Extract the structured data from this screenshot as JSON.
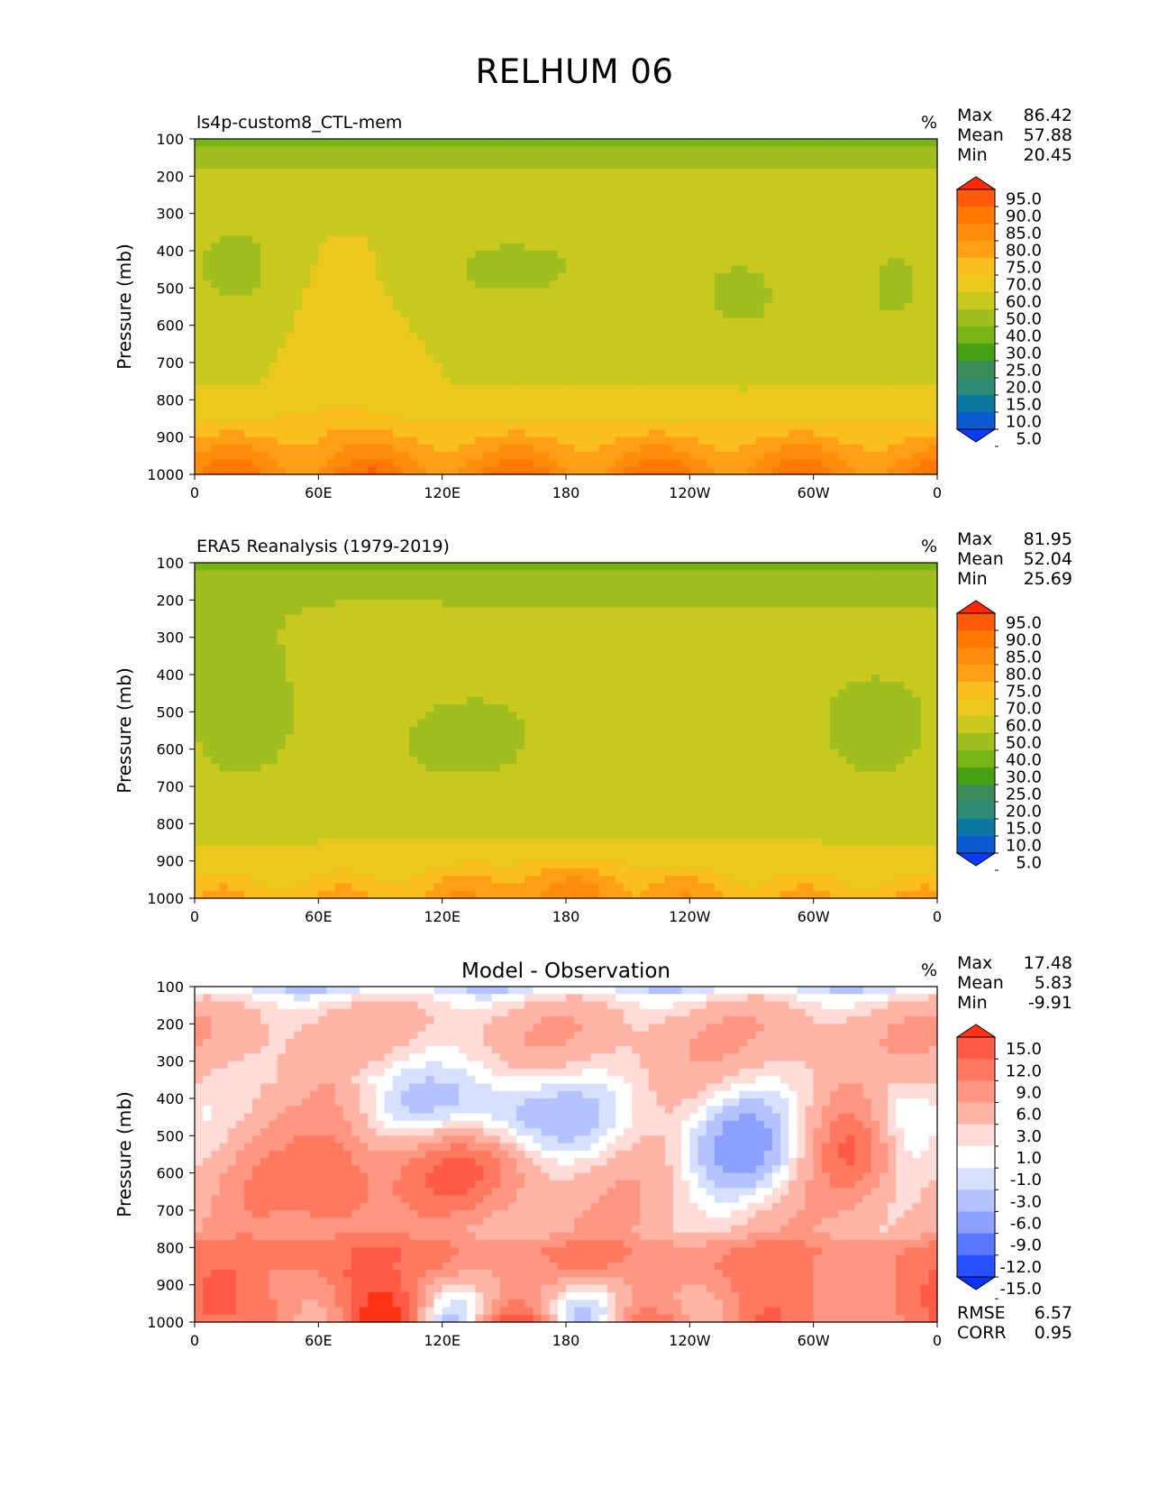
{
  "figure_title": "RELHUM 06",
  "chart_data": [
    {
      "type": "heatmap",
      "title": "ls4p-custom8_CTL-mem",
      "title_position": "left",
      "units": "%",
      "ylabel": "Pressure (mb)",
      "xlabel": "",
      "x_ticks": [
        "0",
        "60E",
        "120E",
        "180",
        "120W",
        "60W",
        "0"
      ],
      "y_ticks": [
        "100",
        "200",
        "300",
        "400",
        "500",
        "600",
        "700",
        "800",
        "900",
        "1000"
      ],
      "xlim": [
        0,
        360
      ],
      "ylim": [
        1000,
        100
      ],
      "stats": [
        {
          "label": "Max",
          "value": "86.42"
        },
        {
          "label": "Mean",
          "value": "57.88"
        },
        {
          "label": "Min",
          "value": "20.45"
        }
      ],
      "colorbar": {
        "levels": [
          "5.0",
          "10.0",
          "15.0",
          "20.0",
          "25.0",
          "30.0",
          "40.0",
          "50.0",
          "60.0",
          "70.0",
          "75.0",
          "80.0",
          "85.0",
          "90.0",
          "95.0"
        ],
        "colors": [
          "#0a3cff",
          "#0a5ad2",
          "#0a78a0",
          "#2d8c73",
          "#3c8c5a",
          "#46a014",
          "#78b414",
          "#a0be1e",
          "#c8c81e",
          "#ebc81e",
          "#fabe1e",
          "#ffa014",
          "#ff8c0a",
          "#ff7800",
          "#ff5a0a",
          "#ff2800"
        ],
        "extend": "both"
      },
      "field_description": "Relative humidity cross-section, mostly 40-70% aloft, 70-85% near surface (800-1000 mb), 25-40% near 100 mb"
    },
    {
      "type": "heatmap",
      "title": "ERA5 Reanalysis (1979-2019)",
      "title_position": "left",
      "units": "%",
      "ylabel": "Pressure (mb)",
      "xlabel": "",
      "x_ticks": [
        "0",
        "60E",
        "120E",
        "180",
        "120W",
        "60W",
        "0"
      ],
      "y_ticks": [
        "100",
        "200",
        "300",
        "400",
        "500",
        "600",
        "700",
        "800",
        "900",
        "1000"
      ],
      "xlim": [
        0,
        360
      ],
      "ylim": [
        1000,
        100
      ],
      "stats": [
        {
          "label": "Max",
          "value": "81.95"
        },
        {
          "label": "Mean",
          "value": "52.04"
        },
        {
          "label": "Min",
          "value": "25.69"
        }
      ],
      "colorbar": {
        "levels": [
          "5.0",
          "10.0",
          "15.0",
          "20.0",
          "25.0",
          "30.0",
          "40.0",
          "50.0",
          "60.0",
          "70.0",
          "75.0",
          "80.0",
          "85.0",
          "90.0",
          "95.0"
        ],
        "colors": [
          "#0a3cff",
          "#0a5ad2",
          "#0a78a0",
          "#2d8c73",
          "#3c8c5a",
          "#46a014",
          "#78b414",
          "#a0be1e",
          "#c8c81e",
          "#ebc81e",
          "#fabe1e",
          "#ffa014",
          "#ff8c0a",
          "#ff7800",
          "#ff5a0a",
          "#ff2800"
        ],
        "extend": "both"
      }
    },
    {
      "type": "heatmap",
      "title": "Model - Observation",
      "title_position": "center",
      "units": "%",
      "ylabel": "Pressure (mb)",
      "xlabel": "",
      "x_ticks": [
        "0",
        "60E",
        "120E",
        "180",
        "120W",
        "60W",
        "0"
      ],
      "y_ticks": [
        "100",
        "200",
        "300",
        "400",
        "500",
        "600",
        "700",
        "800",
        "900",
        "1000"
      ],
      "xlim": [
        0,
        360
      ],
      "ylim": [
        1000,
        100
      ],
      "stats": [
        {
          "label": "Max",
          "value": "17.48"
        },
        {
          "label": "Mean",
          "value": "5.83"
        },
        {
          "label": "Min",
          "value": "-9.91"
        }
      ],
      "extra_stats": [
        {
          "label": "RMSE",
          "value": "6.57"
        },
        {
          "label": "CORR",
          "value": "0.95"
        }
      ],
      "colorbar": {
        "levels": [
          "-15.0",
          "-12.0",
          "-9.0",
          "-6.0",
          "-3.0",
          "-1.0",
          "1.0",
          "3.0",
          "6.0",
          "9.0",
          "12.0",
          "15.0"
        ],
        "colors": [
          "#0a32ff",
          "#2850ff",
          "#5a78ff",
          "#8ca0ff",
          "#b4c3ff",
          "#d7e1ff",
          "#ffffff",
          "#ffdcd7",
          "#ffb4a5",
          "#ff9682",
          "#ff7860",
          "#ff5a46",
          "#ff3214"
        ],
        "extend": "both"
      }
    }
  ]
}
